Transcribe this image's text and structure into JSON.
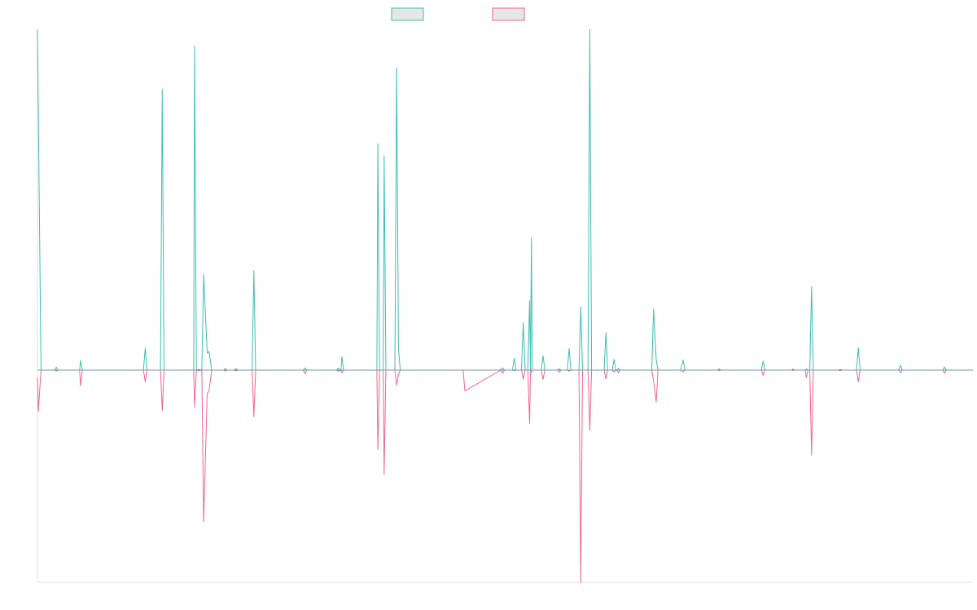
{
  "chart_data": {
    "type": "line",
    "title": "",
    "xlabel": "",
    "ylabel": "",
    "grid": false,
    "legend_placement": "top-center",
    "xlim": [
      0,
      100
    ],
    "ylim": [
      -100,
      100
    ],
    "series": [
      {
        "label": "",
        "color": "#3dbfb2",
        "fill": "#e6e6e6",
        "points": [
          [
            0.0,
            100
          ],
          [
            0.4,
            0
          ],
          [
            1.9,
            0
          ],
          [
            2.1,
            0.8
          ],
          [
            2.3,
            0
          ],
          [
            4.7,
            0
          ],
          [
            4.8,
            2.8
          ],
          [
            5.0,
            0
          ],
          [
            11.8,
            0
          ],
          [
            12.0,
            6.5
          ],
          [
            12.2,
            0
          ],
          [
            13.7,
            0
          ],
          [
            13.9,
            82.4
          ],
          [
            14.1,
            0
          ],
          [
            17.4,
            0
          ],
          [
            17.5,
            95
          ],
          [
            17.7,
            0
          ],
          [
            18.0,
            0.2
          ],
          [
            18.3,
            0
          ],
          [
            18.5,
            28.1
          ],
          [
            18.9,
            5
          ],
          [
            19.1,
            5.5
          ],
          [
            19.4,
            0
          ],
          [
            20.8,
            0
          ],
          [
            20.9,
            0.5
          ],
          [
            21.1,
            0
          ],
          [
            21.9,
            0
          ],
          [
            22.1,
            0.4
          ],
          [
            22.3,
            0
          ],
          [
            23.9,
            0
          ],
          [
            24.1,
            29.2
          ],
          [
            24.3,
            0
          ],
          [
            29.6,
            0
          ],
          [
            29.8,
            0.6
          ],
          [
            30.0,
            0
          ],
          [
            33.3,
            0
          ],
          [
            33.5,
            0.5
          ],
          [
            33.8,
            0
          ],
          [
            33.9,
            3.9
          ],
          [
            34.1,
            0
          ],
          [
            37.8,
            0
          ],
          [
            37.9,
            66.4
          ],
          [
            38.1,
            0
          ],
          [
            38.5,
            0
          ],
          [
            38.6,
            62.8
          ],
          [
            38.8,
            0
          ],
          [
            39.8,
            0
          ],
          [
            40.0,
            88.7
          ],
          [
            40.2,
            6.5
          ],
          [
            40.4,
            0
          ],
          [
            47.4,
            0
          ],
          [
            47.6,
            0
          ],
          [
            51.6,
            0
          ],
          [
            51.8,
            0.6
          ],
          [
            52.0,
            0
          ],
          [
            52.9,
            0
          ],
          [
            53.1,
            3.5
          ],
          [
            53.3,
            0
          ],
          [
            53.9,
            0
          ],
          [
            54.1,
            13.9
          ],
          [
            54.3,
            0
          ],
          [
            54.6,
            0
          ],
          [
            54.8,
            20.3
          ],
          [
            54.9,
            0
          ],
          [
            55.0,
            38.8
          ],
          [
            55.1,
            0
          ],
          [
            56.1,
            0
          ],
          [
            56.3,
            4.2
          ],
          [
            56.5,
            0
          ],
          [
            57.9,
            0
          ],
          [
            58.1,
            0.3
          ],
          [
            58.3,
            0
          ],
          [
            59.0,
            0
          ],
          [
            59.2,
            6.3
          ],
          [
            59.4,
            0
          ],
          [
            60.3,
            0
          ],
          [
            60.5,
            18.6
          ],
          [
            60.7,
            0
          ],
          [
            61.3,
            0
          ],
          [
            61.5,
            100
          ],
          [
            61.7,
            0
          ],
          [
            63.1,
            0
          ],
          [
            63.3,
            11
          ],
          [
            63.5,
            0
          ],
          [
            64.0,
            0
          ],
          [
            64.2,
            3.2
          ],
          [
            64.4,
            0
          ],
          [
            64.5,
            0
          ],
          [
            64.7,
            0.4
          ],
          [
            64.9,
            0
          ],
          [
            68.4,
            0
          ],
          [
            68.6,
            17.9
          ],
          [
            68.9,
            3
          ],
          [
            69.1,
            0
          ],
          [
            71.6,
            0
          ],
          [
            71.9,
            2.9
          ],
          [
            72.1,
            0
          ],
          [
            75.8,
            0
          ],
          [
            75.9,
            0.4
          ],
          [
            76.1,
            0
          ],
          [
            80.6,
            0
          ],
          [
            80.8,
            2.7
          ],
          [
            81.0,
            0
          ],
          [
            84.0,
            0
          ],
          [
            84.1,
            0.3
          ],
          [
            84.3,
            0
          ],
          [
            85.5,
            0
          ],
          [
            85.6,
            0.3
          ],
          [
            85.8,
            0
          ],
          [
            86.0,
            0
          ],
          [
            86.2,
            24.5
          ],
          [
            86.4,
            0
          ],
          [
            89.2,
            0
          ],
          [
            89.4,
            0.2
          ],
          [
            89.6,
            0
          ],
          [
            91.2,
            0
          ],
          [
            91.4,
            6.5
          ],
          [
            91.6,
            0
          ],
          [
            95.9,
            0
          ],
          [
            96.1,
            1.4
          ],
          [
            96.3,
            0
          ],
          [
            100.8,
            0
          ],
          [
            101.0,
            0.9
          ],
          [
            101.2,
            0
          ],
          [
            104.0,
            0
          ]
        ]
      },
      {
        "label": "",
        "color": "#f0668f",
        "fill": "#e6e6e6",
        "points": [
          [
            0.0,
            -3.5
          ],
          [
            0.1,
            -19.3
          ],
          [
            0.4,
            0
          ],
          [
            1.9,
            0
          ],
          [
            2.1,
            -0.5
          ],
          [
            2.3,
            0
          ],
          [
            4.7,
            0
          ],
          [
            4.8,
            -7.4
          ],
          [
            5.0,
            0
          ],
          [
            11.8,
            0
          ],
          [
            12.0,
            -5.5
          ],
          [
            12.2,
            0
          ],
          [
            13.7,
            0
          ],
          [
            13.9,
            -19.2
          ],
          [
            14.1,
            0
          ],
          [
            17.4,
            0
          ],
          [
            17.5,
            -17.5
          ],
          [
            17.7,
            0
          ],
          [
            18.0,
            -0.3
          ],
          [
            18.3,
            0
          ],
          [
            18.5,
            -71.5
          ],
          [
            18.9,
            -11
          ],
          [
            19.1,
            -10
          ],
          [
            19.4,
            0
          ],
          [
            20.8,
            0
          ],
          [
            20.9,
            -0.5
          ],
          [
            21.1,
            0
          ],
          [
            21.9,
            0
          ],
          [
            22.1,
            -0.4
          ],
          [
            22.3,
            0
          ],
          [
            23.9,
            0
          ],
          [
            24.1,
            -22
          ],
          [
            24.3,
            0
          ],
          [
            29.6,
            0
          ],
          [
            29.8,
            -1.8
          ],
          [
            30.0,
            0
          ],
          [
            33.3,
            0
          ],
          [
            33.5,
            -0.5
          ],
          [
            33.8,
            0
          ],
          [
            33.9,
            -1.3
          ],
          [
            34.1,
            0
          ],
          [
            37.8,
            0
          ],
          [
            37.9,
            -37.5
          ],
          [
            38.1,
            0
          ],
          [
            38.5,
            0
          ],
          [
            38.6,
            -49.2
          ],
          [
            38.8,
            0
          ],
          [
            39.8,
            0
          ],
          [
            40.0,
            -7.2
          ],
          [
            40.2,
            -2
          ],
          [
            40.4,
            0
          ],
          [
            47.4,
            0
          ],
          [
            47.6,
            -9.8
          ],
          [
            51.6,
            0
          ],
          [
            51.8,
            -1.5
          ],
          [
            52.0,
            0
          ],
          [
            52.9,
            0
          ],
          [
            53.1,
            -0.3
          ],
          [
            53.3,
            0
          ],
          [
            53.9,
            0
          ],
          [
            54.1,
            -4.3
          ],
          [
            54.3,
            0
          ],
          [
            54.6,
            0
          ],
          [
            54.8,
            -25
          ],
          [
            54.9,
            0
          ],
          [
            55.0,
            -1
          ],
          [
            55.1,
            0
          ],
          [
            56.1,
            0
          ],
          [
            56.3,
            -4.4
          ],
          [
            56.5,
            0
          ],
          [
            57.9,
            0
          ],
          [
            58.1,
            -1
          ],
          [
            58.3,
            0
          ],
          [
            59.0,
            0
          ],
          [
            59.2,
            -0.5
          ],
          [
            59.4,
            0
          ],
          [
            60.3,
            0
          ],
          [
            60.5,
            -100
          ],
          [
            60.7,
            0
          ],
          [
            61.3,
            0
          ],
          [
            61.5,
            -28.5
          ],
          [
            61.7,
            0
          ],
          [
            63.1,
            0
          ],
          [
            63.3,
            -4.2
          ],
          [
            63.5,
            0
          ],
          [
            64.0,
            0
          ],
          [
            64.2,
            -1
          ],
          [
            64.4,
            0
          ],
          [
            64.5,
            0
          ],
          [
            64.7,
            -1.3
          ],
          [
            64.9,
            0
          ],
          [
            68.4,
            0
          ],
          [
            68.6,
            -5
          ],
          [
            68.9,
            -15
          ],
          [
            69.1,
            0
          ],
          [
            71.6,
            0
          ],
          [
            71.9,
            -1
          ],
          [
            72.1,
            0
          ],
          [
            75.8,
            0
          ],
          [
            75.9,
            -0.3
          ],
          [
            76.1,
            0
          ],
          [
            80.6,
            0
          ],
          [
            80.8,
            -2.4
          ],
          [
            81.0,
            0
          ],
          [
            84.0,
            0
          ],
          [
            84.1,
            -0.2
          ],
          [
            84.3,
            0
          ],
          [
            85.5,
            0
          ],
          [
            85.6,
            -3.6
          ],
          [
            85.8,
            0
          ],
          [
            86.0,
            0
          ],
          [
            86.2,
            -40.2
          ],
          [
            86.4,
            0
          ],
          [
            89.2,
            0
          ],
          [
            89.4,
            -0.3
          ],
          [
            89.6,
            0
          ],
          [
            91.2,
            0
          ],
          [
            91.4,
            -5.5
          ],
          [
            91.6,
            0
          ],
          [
            95.9,
            0
          ],
          [
            96.1,
            -1.3
          ],
          [
            96.3,
            0
          ],
          [
            100.8,
            0
          ],
          [
            101.0,
            -1.4
          ],
          [
            101.2,
            0
          ],
          [
            104.0,
            0
          ]
        ]
      }
    ]
  }
}
